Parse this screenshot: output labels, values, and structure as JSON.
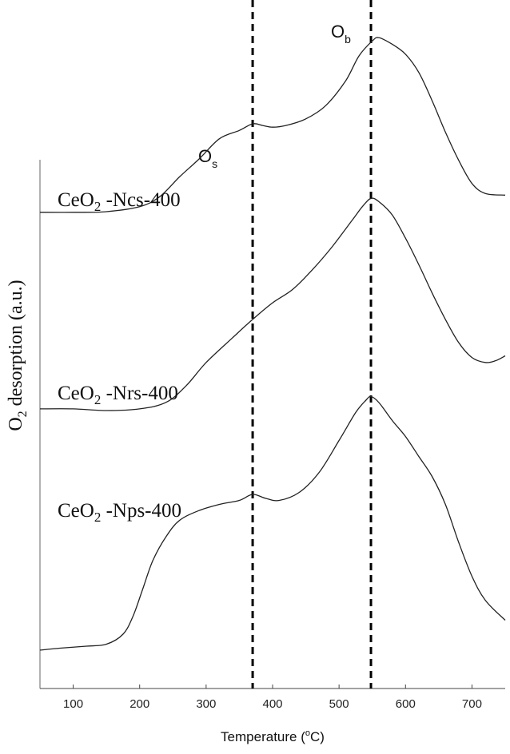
{
  "chart_data": {
    "type": "line",
    "xlabel": {
      "prefix": "Temperature (",
      "sup": "o",
      "suffix": "C)"
    },
    "ylabel": {
      "main": "O",
      "sub": "2",
      "rest": " desorption (a.u.)"
    },
    "xlim": [
      50,
      750
    ],
    "ylim": [
      0,
      10
    ],
    "x_ticks": [
      100,
      200,
      300,
      400,
      500,
      600,
      700
    ],
    "grid": false,
    "legend": "none",
    "series": [
      {
        "label": {
          "main": "CeO",
          "sub": "2",
          "rest": " -Ncs-400"
        },
        "points": [
          [
            50,
            3.98
          ],
          [
            100,
            3.98
          ],
          [
            150,
            4.0
          ],
          [
            200,
            4.15
          ],
          [
            230,
            4.45
          ],
          [
            260,
            5.05
          ],
          [
            290,
            5.6
          ],
          [
            320,
            6.2
          ],
          [
            350,
            6.45
          ],
          [
            370,
            6.65
          ],
          [
            385,
            6.6
          ],
          [
            400,
            6.55
          ],
          [
            420,
            6.6
          ],
          [
            450,
            6.8
          ],
          [
            480,
            7.2
          ],
          [
            510,
            7.95
          ],
          [
            530,
            8.7
          ],
          [
            550,
            9.15
          ],
          [
            560,
            9.25
          ],
          [
            580,
            9.05
          ],
          [
            600,
            8.75
          ],
          [
            620,
            8.2
          ],
          [
            640,
            7.35
          ],
          [
            660,
            6.4
          ],
          [
            680,
            5.55
          ],
          [
            700,
            4.85
          ],
          [
            720,
            4.55
          ],
          [
            750,
            4.5
          ]
        ]
      },
      {
        "label": {
          "main": "CeO",
          "sub": "2",
          "rest": " -Nrs-400"
        },
        "points": [
          [
            50,
            2.05
          ],
          [
            100,
            2.05
          ],
          [
            150,
            2.0
          ],
          [
            200,
            2.05
          ],
          [
            240,
            2.25
          ],
          [
            270,
            2.75
          ],
          [
            300,
            3.45
          ],
          [
            340,
            4.2
          ],
          [
            370,
            4.75
          ],
          [
            400,
            5.25
          ],
          [
            430,
            5.65
          ],
          [
            460,
            6.25
          ],
          [
            490,
            6.95
          ],
          [
            520,
            7.75
          ],
          [
            535,
            8.15
          ],
          [
            548,
            8.4
          ],
          [
            560,
            8.3
          ],
          [
            580,
            7.9
          ],
          [
            600,
            7.2
          ],
          [
            620,
            6.4
          ],
          [
            640,
            5.55
          ],
          [
            660,
            4.75
          ],
          [
            680,
            4.05
          ],
          [
            700,
            3.6
          ],
          [
            720,
            3.45
          ],
          [
            735,
            3.5
          ],
          [
            750,
            3.65
          ]
        ]
      },
      {
        "label": {
          "main": "CeO",
          "sub": "2",
          "rest": " -Nps-400"
        },
        "points": [
          [
            50,
            0.2
          ],
          [
            80,
            0.25
          ],
          [
            120,
            0.3
          ],
          [
            150,
            0.35
          ],
          [
            175,
            0.6
          ],
          [
            190,
            1.05
          ],
          [
            205,
            1.75
          ],
          [
            220,
            2.45
          ],
          [
            240,
            3.05
          ],
          [
            260,
            3.45
          ],
          [
            290,
            3.7
          ],
          [
            320,
            3.85
          ],
          [
            350,
            3.95
          ],
          [
            370,
            4.1
          ],
          [
            390,
            4.0
          ],
          [
            410,
            3.95
          ],
          [
            440,
            4.15
          ],
          [
            470,
            4.65
          ],
          [
            500,
            5.45
          ],
          [
            525,
            6.15
          ],
          [
            540,
            6.45
          ],
          [
            548,
            6.55
          ],
          [
            560,
            6.4
          ],
          [
            580,
            5.95
          ],
          [
            600,
            5.55
          ],
          [
            620,
            5.05
          ],
          [
            640,
            4.55
          ],
          [
            660,
            3.85
          ],
          [
            680,
            2.9
          ],
          [
            700,
            2.05
          ],
          [
            720,
            1.45
          ],
          [
            750,
            0.95
          ]
        ]
      }
    ],
    "annotations": [
      {
        "x": 370,
        "label": {
          "main": "O",
          "sub": "s"
        },
        "style": "dashed-vertical"
      },
      {
        "x": 548,
        "label": {
          "main": "O",
          "sub": "b"
        },
        "style": "dashed-vertical"
      }
    ]
  }
}
